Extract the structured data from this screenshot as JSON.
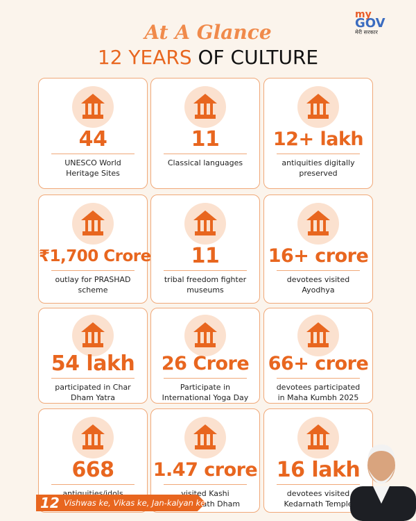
{
  "header": {
    "title": "At A Glance",
    "subtitle_highlight": "12 YEARS",
    "subtitle_rest": "OF CULTURE",
    "logo_top": "my",
    "logo_main": "GOV",
    "logo_sub": "मेरी सरकार"
  },
  "cards": [
    {
      "value": "44",
      "description": "UNESCO World Heritage Sites"
    },
    {
      "value": "11",
      "description": "Classical languages"
    },
    {
      "value": "12+ lakh",
      "description": "antiquities digitally preserved"
    },
    {
      "value": "₹1,700 Crore",
      "description": "outlay for PRASHAD scheme"
    },
    {
      "value": "11",
      "description": "tribal freedom fighter museums"
    },
    {
      "value": "16+ crore",
      "description": "devotees visited Ayodhya"
    },
    {
      "value": "54 lakh",
      "description": "participated in Char Dham Yatra"
    },
    {
      "value": "26 Crore",
      "description": "Participate in International Yoga Day"
    },
    {
      "value": "66+ crore",
      "description": "devotees participated in Maha Kumbh 2025"
    },
    {
      "value": "668",
      "description": "antiquities/idols returned to India"
    },
    {
      "value": "1.47 crore",
      "description": "visited Kashi Vishwanath Dham"
    },
    {
      "value": "16 lakh",
      "description": "devotees visited Kedarnath Temple"
    }
  ],
  "footer": {
    "badge": "12",
    "tagline": "Vishwas ke, Vikas ke, Jan-kalyan ke"
  }
}
